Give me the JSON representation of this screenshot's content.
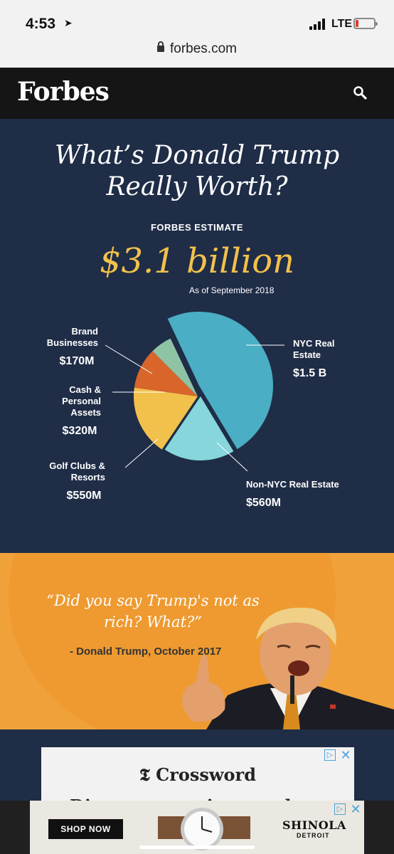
{
  "status_bar": {
    "time": "4:53",
    "network": "LTE",
    "url": "forbes.com"
  },
  "header": {
    "logo": "Forbes"
  },
  "infographic": {
    "title_line1": "What’s Donald Trump",
    "title_line2": "Really Worth?",
    "estimate_label": "FORBES ESTIMATE",
    "estimate_value": "$3.1 billion",
    "as_of": "As of September 2018"
  },
  "chart_data": {
    "type": "pie",
    "title": "",
    "slices": [
      {
        "name": "NYC Real Estate",
        "label_lines": [
          "NYC Real",
          "Estate"
        ],
        "value_label": "$1.5 B",
        "value": 1500,
        "color": "#4aaec4"
      },
      {
        "name": "Non-NYC Real Estate",
        "label_lines": [
          "Non-NYC Real Estate"
        ],
        "value_label": "$560M",
        "value": 560,
        "color": "#86d6dc"
      },
      {
        "name": "Golf Clubs & Resorts",
        "label_lines": [
          "Golf Clubs &",
          "Resorts"
        ],
        "value_label": "$550M",
        "value": 550,
        "color": "#f2c14b"
      },
      {
        "name": "Cash & Personal Assets",
        "label_lines": [
          "Cash &",
          "Personal",
          "Assets"
        ],
        "value_label": "$320M",
        "value": 320,
        "color": "#d9652b"
      },
      {
        "name": "Brand Businesses",
        "label_lines": [
          "Brand",
          "Businesses"
        ],
        "value_label": "$170M",
        "value": 170,
        "color": "#8fc3a6"
      }
    ],
    "unit": "million USD"
  },
  "quote": {
    "text_line1": "“Did you say Trump's not as",
    "text_line2": "rich? What?”",
    "citation": "- Donald Trump, October 2017"
  },
  "ads": {
    "crossword_title": "Crossword",
    "crossword_tagline": "Discover your inner solver",
    "shop_button": "SHOP NOW",
    "brand": "SHINOLA",
    "brand_city": "DETROIT"
  }
}
